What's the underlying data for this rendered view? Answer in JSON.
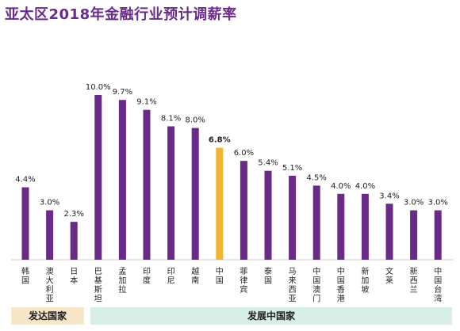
{
  "title": "亚太区2018年金融行业预计调薪率",
  "colors": {
    "bar": "#6a2a87",
    "highlight": "#f3b431",
    "title": "#6a2c8c"
  },
  "chart_data": {
    "type": "bar",
    "title": "亚太区2018年金融行业预计调薪率",
    "categories": [
      "韩国",
      "澳大利亚",
      "日本",
      "巴基斯坦",
      "孟加拉",
      "印度",
      "印尼",
      "越南",
      "中国",
      "菲律宾",
      "泰国",
      "马来西亚",
      "中国澳门",
      "中国香港",
      "新加坡",
      "文莱",
      "新西兰",
      "中国台湾"
    ],
    "values": [
      4.4,
      3.0,
      2.3,
      10.0,
      9.7,
      9.1,
      8.1,
      8.0,
      6.8,
      6.0,
      5.4,
      5.1,
      4.5,
      4.0,
      4.0,
      3.4,
      3.0,
      3.0
    ],
    "value_labels": [
      "4.4%",
      "3.0%",
      "2.3%",
      "10.0%",
      "9.7%",
      "9.1%",
      "8.1%",
      "8.0%",
      "6.8%",
      "6.0%",
      "5.4%",
      "5.1%",
      "4.5%",
      "4.0%",
      "4.0%",
      "3.4%",
      "3.0%",
      "3.0%"
    ],
    "highlight_index": 8,
    "ylim": [
      0,
      10
    ],
    "grid": false,
    "groups": [
      {
        "label": "发达国家",
        "start": 0,
        "end": 2
      },
      {
        "label": "发展中国家",
        "start": 3,
        "end": 17
      }
    ]
  }
}
